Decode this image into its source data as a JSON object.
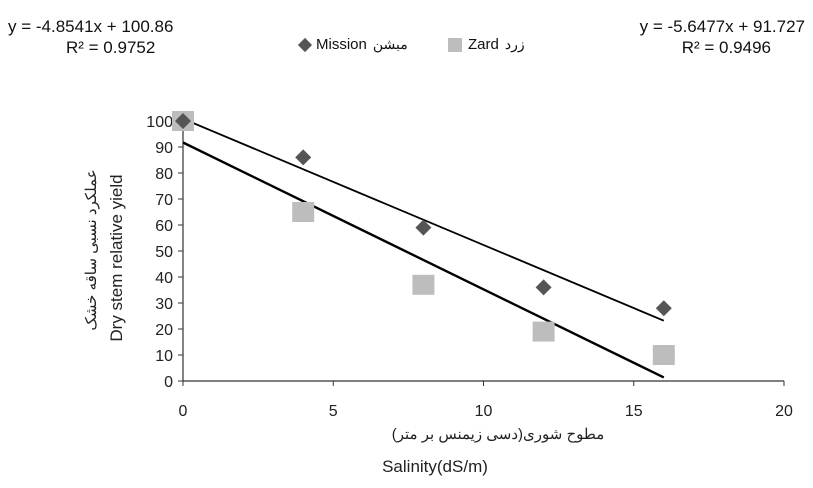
{
  "chart_data": {
    "type": "scatter",
    "title": "",
    "xlabel": "Salinity(dS/m)",
    "xlabel_fa": "مطوح شوری(دسی زیمنس بر متر)",
    "ylabel": "Dry stem relative yield",
    "ylabel_fa": "عملکرد نسبی ساقه خشک",
    "xlim": [
      0,
      20
    ],
    "ylim": [
      0,
      100
    ],
    "x_ticks": [
      "0",
      "5",
      "10",
      "15",
      "20"
    ],
    "y_ticks": [
      "0",
      "10",
      "20",
      "30",
      "40",
      "50",
      "60",
      "70",
      "80",
      "90",
      "100"
    ],
    "grid": false,
    "legend_position": "top-center",
    "series": [
      {
        "name": "Mission",
        "name_fa": "مبشن",
        "marker": "diamond",
        "color": "#555555",
        "x": [
          0,
          4,
          8,
          12,
          16
        ],
        "y": [
          100,
          86,
          59,
          36,
          28
        ],
        "trendline": {
          "slope": -4.8541,
          "intercept": 100.86,
          "x_range": [
            0,
            16
          ]
        },
        "equation": "y = -4.8541x + 100.86",
        "r2": "R² = 0.9752"
      },
      {
        "name": "Zard",
        "name_fa": "زرد",
        "marker": "square",
        "color": "#bdbdbd",
        "x": [
          0,
          4,
          8,
          12,
          16
        ],
        "y": [
          100,
          65,
          37,
          19,
          10
        ],
        "trendline": {
          "slope": -5.6477,
          "intercept": 91.727,
          "x_range": [
            0,
            16
          ]
        },
        "equation": "y = -5.6477x + 91.727",
        "r2": "R² = 0.9496"
      }
    ]
  }
}
